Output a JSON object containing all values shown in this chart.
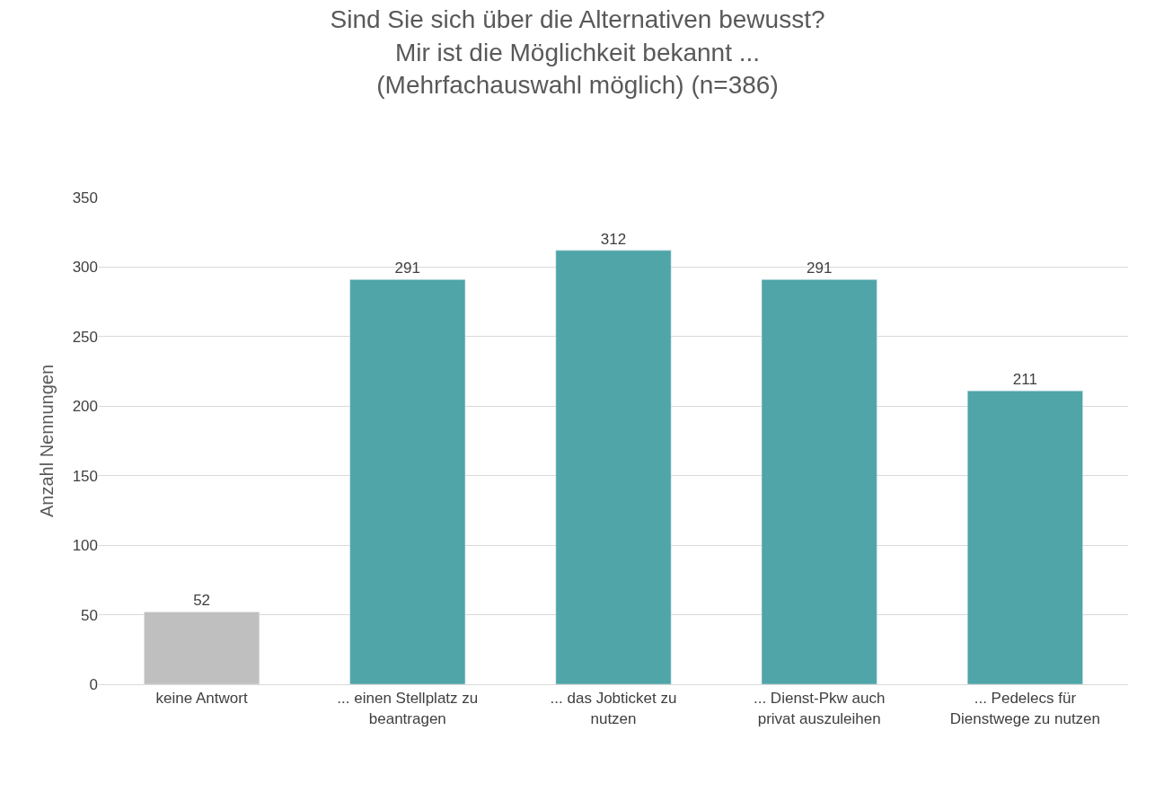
{
  "chart_data": {
    "type": "bar",
    "title": "Sind Sie sich über die Alternativen bewusst?\nMir ist die Möglichkeit bekannt ...\n(Mehrfachauswahl möglich) (n=386)",
    "ylabel": "Anzahl Nennungen",
    "categories": [
      "keine Antwort",
      "... einen Stellplatz zu beantragen",
      "... das Jobticket zu nutzen",
      "... Dienst-Pkw auch privat auszuleihen",
      "... Pedelecs für Dienstwege zu nutzen"
    ],
    "values": [
      52,
      291,
      312,
      291,
      211
    ],
    "colors": [
      "#bfbfbf",
      "#4fa5a8",
      "#4fa5a8",
      "#4fa5a8",
      "#4fa5a8"
    ],
    "ylim": [
      0,
      350
    ],
    "yticks": [
      0,
      50,
      100,
      150,
      200,
      250,
      300,
      350
    ],
    "grid": "y",
    "data_labels": true,
    "legend": false
  }
}
